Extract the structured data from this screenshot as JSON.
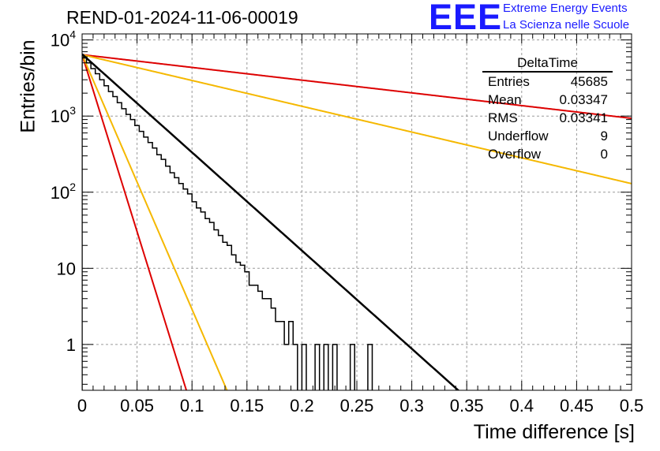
{
  "header": {
    "title": "REND-01-2024-11-06-00019",
    "logo_text": "EEE",
    "org_line1": "Extreme Energy Events",
    "org_line2": "La Scienza nelle Scuole"
  },
  "stats": {
    "title": "DeltaTime",
    "rows": [
      {
        "label": "Entries",
        "value": "45685"
      },
      {
        "label": "Mean",
        "value": "0.03347"
      },
      {
        "label": "RMS",
        "value": "0.03341"
      },
      {
        "label": "Underflow",
        "value": "9"
      },
      {
        "label": "Overflow",
        "value": "0"
      }
    ]
  },
  "colors": {
    "histogram": "#000000",
    "fit": "#000000",
    "red": "#dd0000",
    "orange": "#f5b800",
    "grid": "#9a9a9a",
    "brand": "#1a1aff"
  },
  "chart_data": {
    "type": "line",
    "title": "REND-01-2024-11-06-00019",
    "xlabel": "Time difference [s]",
    "ylabel": "Entries/bin",
    "xlim": [
      0,
      0.5
    ],
    "ylim": [
      0.25,
      12000
    ],
    "yscale": "log",
    "grid": true,
    "x_ticks": [
      "0",
      "0.05",
      "0.1",
      "0.15",
      "0.2",
      "0.25",
      "0.3",
      "0.35",
      "0.4",
      "0.45",
      "0.5"
    ],
    "x_tick_values": [
      0,
      0.05,
      0.1,
      0.15,
      0.2,
      0.25,
      0.3,
      0.35,
      0.4,
      0.45,
      0.5
    ],
    "y_ticks": [
      {
        "value": 10000,
        "base": "10",
        "exp": "4"
      },
      {
        "value": 1000,
        "base": "10",
        "exp": "3"
      },
      {
        "value": 100,
        "base": "10",
        "exp": "2"
      },
      {
        "value": 10,
        "base": "10",
        "exp": ""
      },
      {
        "value": 1,
        "base": "1",
        "exp": ""
      }
    ],
    "histogram": {
      "bin_width": 0.004,
      "counts": [
        5800,
        5000,
        4200,
        3600,
        3000,
        2500,
        2100,
        1800,
        1500,
        1250,
        1050,
        900,
        750,
        630,
        530,
        450,
        380,
        310,
        270,
        220,
        180,
        155,
        130,
        110,
        95,
        75,
        62,
        55,
        45,
        40,
        32,
        27,
        22,
        20,
        15,
        12,
        11,
        9,
        6,
        6,
        5,
        4,
        4,
        3,
        2,
        2,
        1,
        2,
        1,
        0,
        1,
        0,
        0,
        1,
        0,
        1,
        0,
        1,
        0,
        0,
        0,
        1,
        0,
        0,
        0,
        1,
        0,
        0,
        0,
        0,
        0,
        0,
        0,
        0,
        0,
        0,
        0,
        0,
        0,
        0,
        0,
        0,
        0,
        0,
        0,
        0,
        0,
        0,
        0,
        0,
        0,
        0,
        0,
        0,
        0,
        0,
        0,
        0,
        0,
        0,
        0,
        0,
        0,
        0,
        0,
        0,
        0,
        0,
        0,
        0,
        0,
        0,
        0,
        0,
        0,
        0,
        0,
        0,
        0,
        0,
        0,
        0,
        0,
        0,
        0
      ]
    },
    "fit": {
      "amplitude": 6500,
      "rate": 29.7
    },
    "lines": [
      {
        "name": "",
        "color_key": "red",
        "amplitude": 6400,
        "rate": 3.85
      },
      {
        "name": "",
        "color_key": "orange",
        "amplitude": 6400,
        "rate": 7.8
      },
      {
        "name": "",
        "color_key": "red",
        "amplitude": 6400,
        "rate": 107
      },
      {
        "name": "",
        "color_key": "orange",
        "amplitude": 6400,
        "rate": 77
      }
    ]
  }
}
